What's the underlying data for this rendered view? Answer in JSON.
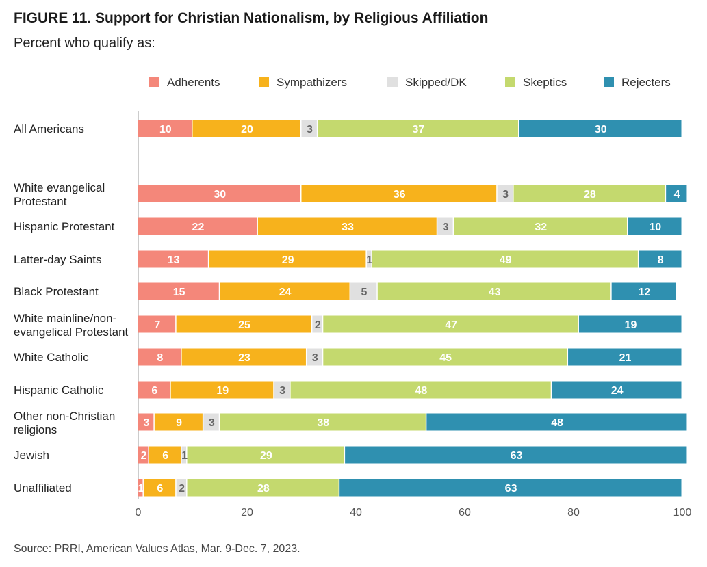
{
  "title": "FIGURE 11.  Support for Christian Nationalism, by Religious Affiliation",
  "subtitle": "Percent who qualify as:",
  "source": "Source: PRRI, American Values Atlas, Mar. 9-Dec. 7, 2023.",
  "colors": {
    "Adherents": "#f4877a",
    "Sympathizers": "#f7b21c",
    "Skipped/DK": "#e0e0e0",
    "Skeptics": "#c4d96e",
    "Rejecters": "#2f90b0"
  },
  "chart_data": {
    "type": "bar",
    "orientation": "horizontal",
    "stacked": true,
    "title": "FIGURE 11.  Support for Christian Nationalism, by Religious Affiliation",
    "subtitle": "Percent who qualify as:",
    "xlabel": "",
    "ylabel": "",
    "xlim": [
      0,
      100
    ],
    "x_ticks": [
      0,
      20,
      40,
      60,
      80,
      100
    ],
    "legend_position": "top",
    "grid": false,
    "categories": [
      [
        "All Americans"
      ],
      [
        "White evangelical",
        "Protestant"
      ],
      [
        "Hispanic Protestant"
      ],
      [
        "Latter-day Saints"
      ],
      [
        "Black Protestant"
      ],
      [
        "White mainline/non-",
        "evangelical Protestant"
      ],
      [
        "White Catholic"
      ],
      [
        "Hispanic Catholic"
      ],
      [
        "Other non-Christian",
        "religions"
      ],
      [
        "Jewish"
      ],
      [
        "Unaffiliated"
      ]
    ],
    "series": [
      {
        "name": "Adherents",
        "values": [
          10,
          30,
          22,
          13,
          15,
          7,
          8,
          6,
          3,
          2,
          1
        ]
      },
      {
        "name": "Sympathizers",
        "values": [
          20,
          36,
          33,
          29,
          24,
          25,
          23,
          19,
          9,
          6,
          6
        ]
      },
      {
        "name": "Skipped/DK",
        "values": [
          3,
          3,
          3,
          1,
          5,
          2,
          3,
          3,
          3,
          1,
          2
        ]
      },
      {
        "name": "Skeptics",
        "values": [
          37,
          28,
          32,
          49,
          43,
          47,
          45,
          48,
          38,
          29,
          28
        ]
      },
      {
        "name": "Rejecters",
        "values": [
          30,
          4,
          10,
          8,
          12,
          19,
          21,
          24,
          48,
          63,
          63
        ]
      }
    ]
  }
}
